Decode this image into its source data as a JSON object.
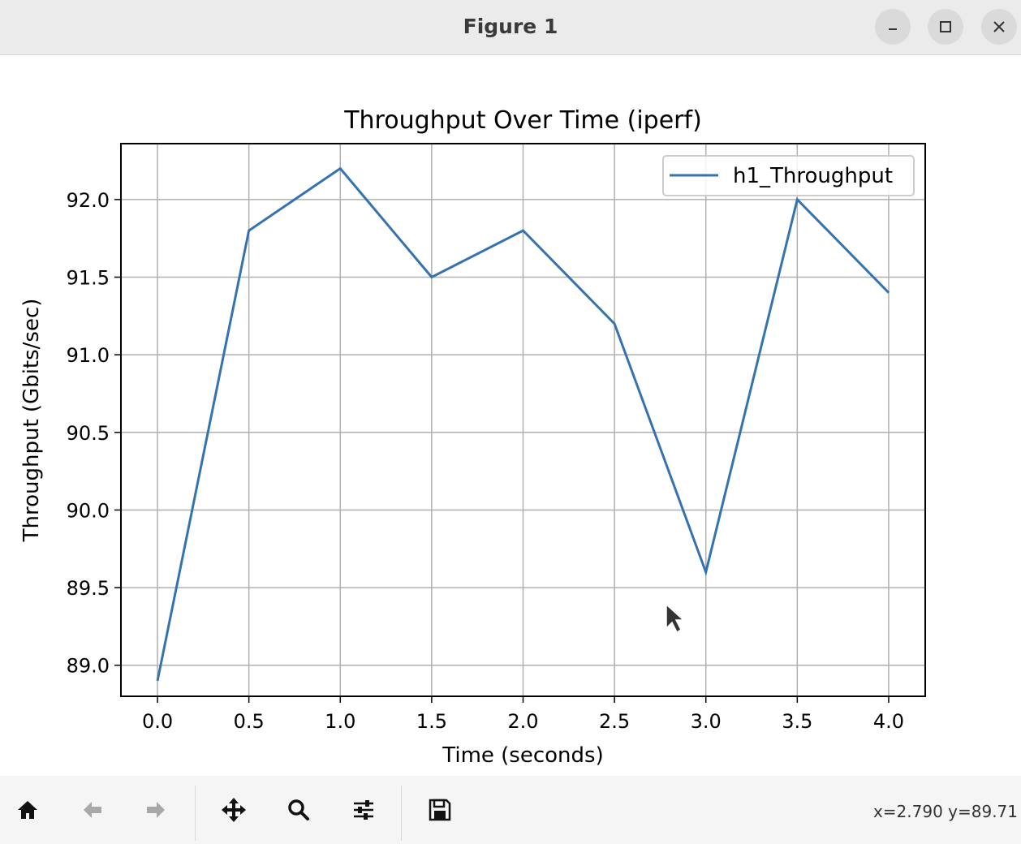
{
  "window": {
    "title": "Figure 1"
  },
  "colors": {
    "line": "#3572b0",
    "grid": "#b0b0b0",
    "titlebar_bg": "#ebebeb",
    "toolbar_bg": "#f5f5f5"
  },
  "chart_data": {
    "type": "line",
    "title": "Throughput Over Time (iperf)",
    "xlabel": "Time (seconds)",
    "ylabel": "Throughput (Gbits/sec)",
    "x": [
      0.0,
      0.5,
      1.0,
      1.5,
      2.0,
      2.5,
      3.0,
      3.5,
      4.0
    ],
    "series": [
      {
        "name": "h1_Throughput",
        "values": [
          88.9,
          91.8,
          92.2,
          91.5,
          91.8,
          91.2,
          89.6,
          92.0,
          91.4
        ]
      }
    ],
    "xticks": [
      "0.0",
      "0.5",
      "1.0",
      "1.5",
      "2.0",
      "2.5",
      "3.0",
      "3.5",
      "4.0"
    ],
    "yticks": [
      "89.0",
      "89.5",
      "90.0",
      "90.5",
      "91.0",
      "91.5",
      "92.0"
    ],
    "xlim": [
      -0.2,
      4.2
    ],
    "ylim": [
      88.8,
      92.36
    ],
    "grid": true,
    "legend": "top-right"
  },
  "toolbar": {
    "icons": [
      "home-icon",
      "back-icon",
      "forward-icon",
      "pan-icon",
      "zoom-icon",
      "configure-icon",
      "save-icon"
    ],
    "coordinates": "x=2.790 y=89.71"
  }
}
